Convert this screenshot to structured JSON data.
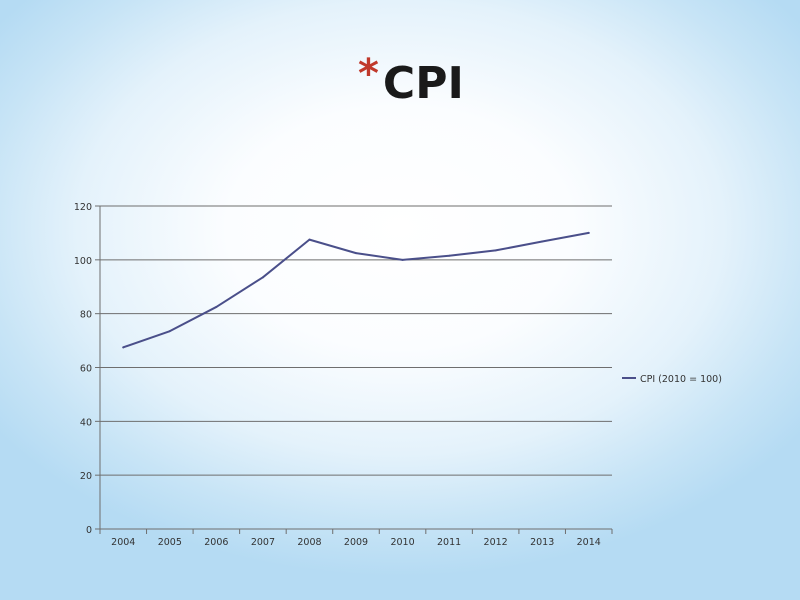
{
  "slide": {
    "bullet": "*",
    "title": "CPI"
  },
  "colors": {
    "bullet": "#c0392b",
    "line": "#4a4f8a",
    "gridline": "#6e6e6e"
  },
  "chart_data": {
    "type": "line",
    "title": "",
    "xlabel": "",
    "ylabel": "",
    "categories": [
      "2004",
      "2005",
      "2006",
      "2007",
      "2008",
      "2009",
      "2010",
      "2011",
      "2012",
      "2013",
      "2014"
    ],
    "series": [
      {
        "name": "CPI (2010 = 100)",
        "values": [
          67.5,
          73.5,
          82.5,
          93.5,
          107.5,
          102.5,
          100.0,
          101.5,
          103.5,
          106.8,
          110.0
        ]
      }
    ],
    "ylim": [
      0,
      120
    ],
    "yticks": [
      "0",
      "20",
      "40",
      "60",
      "80",
      "100",
      "120"
    ],
    "grid": true,
    "legend_position": "right"
  }
}
